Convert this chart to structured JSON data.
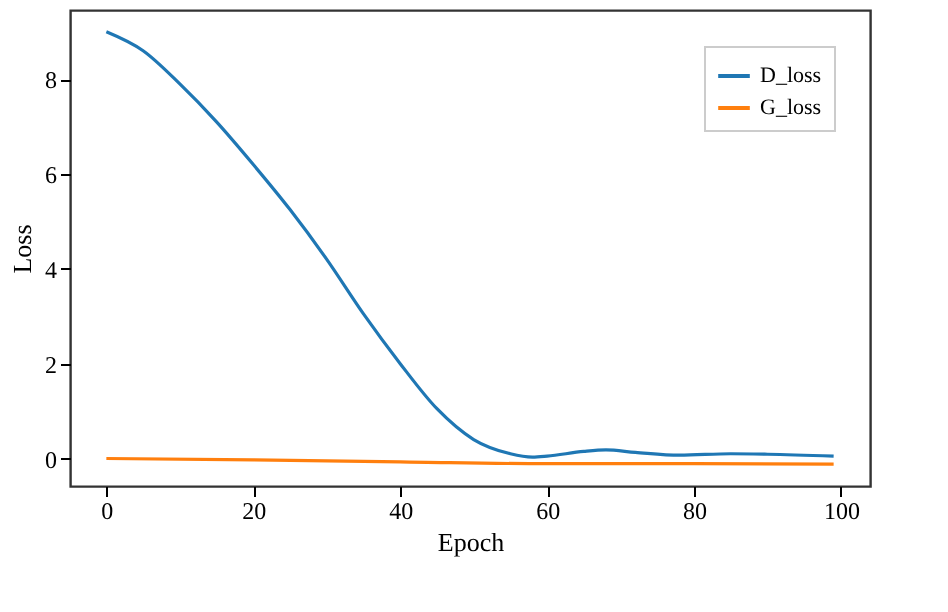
{
  "chart_data": {
    "type": "line",
    "xlabel": "Epoch",
    "ylabel": "Loss",
    "xlim": [
      -4.95,
      103.95
    ],
    "ylim": [
      -0.58,
      9.46
    ],
    "xticks": [
      0,
      20,
      40,
      60,
      80,
      100
    ],
    "yticks": [
      0,
      2,
      4,
      6,
      8
    ],
    "grid": false,
    "legend": "top right",
    "line_style": "solid",
    "marker": "none",
    "series": [
      {
        "name": "D_loss",
        "color": "#1f77b4",
        "x": [
          0,
          5,
          10,
          15,
          20,
          25,
          30,
          35,
          40,
          45,
          50,
          55,
          58,
          60,
          65,
          68,
          72,
          78,
          85,
          90,
          99
        ],
        "values": [
          9.0,
          8.6,
          7.9,
          7.1,
          6.2,
          5.25,
          4.2,
          3.05,
          2.0,
          1.05,
          0.4,
          0.1,
          0.03,
          0.05,
          0.15,
          0.18,
          0.13,
          0.07,
          0.1,
          0.09,
          0.05
        ]
      },
      {
        "name": "G_loss",
        "color": "#ff7f0e",
        "x": [
          0,
          20,
          40,
          60,
          80,
          99
        ],
        "values": [
          0.0,
          -0.03,
          -0.07,
          -0.11,
          -0.11,
          -0.12
        ]
      }
    ]
  }
}
